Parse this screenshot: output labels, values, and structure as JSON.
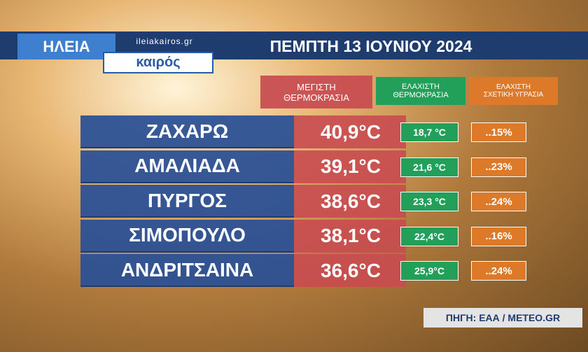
{
  "header": {
    "brand": "ΗΛΕΙΑ",
    "site": "ileiakairos.gr",
    "logo": "καιρός",
    "title": "ΠΕΜΠΤΗ 13 ΙΟΥΝΙΟΥ 2024"
  },
  "table": {
    "columns": [
      "ΜΕΓΙΣΤΗ\nΘΕΡΜΟΚΡΑΣΙΑ",
      "ΕΛΑΧΙΣΤΗ\nΘΕΡΜΟΚΡΑΣΙΑ",
      "ΕΛΑΧΙΣΤΗ\nΣΧΕΤΙΚΗ ΥΓΡΑΣΙΑ"
    ],
    "rows": [
      [
        "ΖΑΧΑΡΩ",
        "40,9°C",
        "18,7 °C",
        "..15%"
      ],
      [
        "ΑΜΑΛΙΑΔΑ",
        "39,1°C",
        "21,6 °C",
        "..23%"
      ],
      [
        "ΠΥΡΓΟΣ",
        "38,6°C",
        "23,3 °C",
        "..24%"
      ],
      [
        "ΣΙΜΟΠΟΥΛΟ",
        "38,1°C",
        "22,4°C",
        "..16%"
      ],
      [
        "ΑΝΔΡΙΤΣΑΙΝΑ",
        "36,6°C",
        "25,9°C",
        "..24%"
      ]
    ]
  },
  "source": "ΠΗΓΗ: ΕΑΑ / METEO.GR"
}
